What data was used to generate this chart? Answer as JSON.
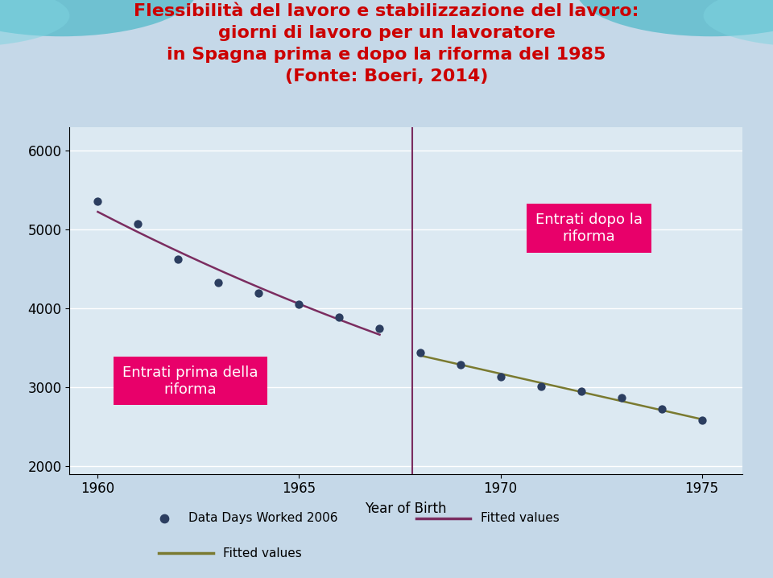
{
  "title_lines": [
    "Flessibilità del lavoro e stabilizzazione del lavoro:",
    "giorni di lavoro per un lavoratore",
    "in Spagna prima e dopo la riforma del 1985",
    "(Fonte: Boeri, 2014)"
  ],
  "title_color": "#cc0000",
  "title_fontsize": 16,
  "bg_outer": "#c5d8e8",
  "bg_plot": "#dce9f2",
  "xlabel": "Year of Birth",
  "xlabel_fontsize": 12,
  "ylim": [
    1900,
    6300
  ],
  "xlim": [
    1959.3,
    1976.0
  ],
  "yticks": [
    2000,
    3000,
    4000,
    5000,
    6000
  ],
  "xticks": [
    1960,
    1965,
    1970,
    1975
  ],
  "vline_x": 1967.8,
  "vline_color": "#7b2d60",
  "pre_reform_x": [
    1960,
    1961,
    1962,
    1963,
    1964,
    1965,
    1966,
    1967
  ],
  "pre_reform_y": [
    5360,
    5070,
    4620,
    4330,
    4200,
    4050,
    3890,
    3750
  ],
  "post_reform_x": [
    1968,
    1969,
    1970,
    1971,
    1972,
    1973,
    1974,
    1975
  ],
  "post_reform_y": [
    3440,
    3290,
    3130,
    3010,
    2950,
    2870,
    2720,
    2580
  ],
  "dot_color": "#2c3e60",
  "dot_size": 55,
  "fitted_pre_color": "#7b2d60",
  "fitted_post_color": "#7a7a30",
  "label_prima": "Entrati prima della\nriforma",
  "label_dopo": "Entrati dopo la\nriforma",
  "label_bg": "#e8006a",
  "label_text_color": "#ffffff",
  "label_fontsize": 13,
  "legend_dot_label": "Data Days Worked 2006",
  "legend_fitted1_label": "Fitted values",
  "legend_fitted2_label": "Fitted values"
}
